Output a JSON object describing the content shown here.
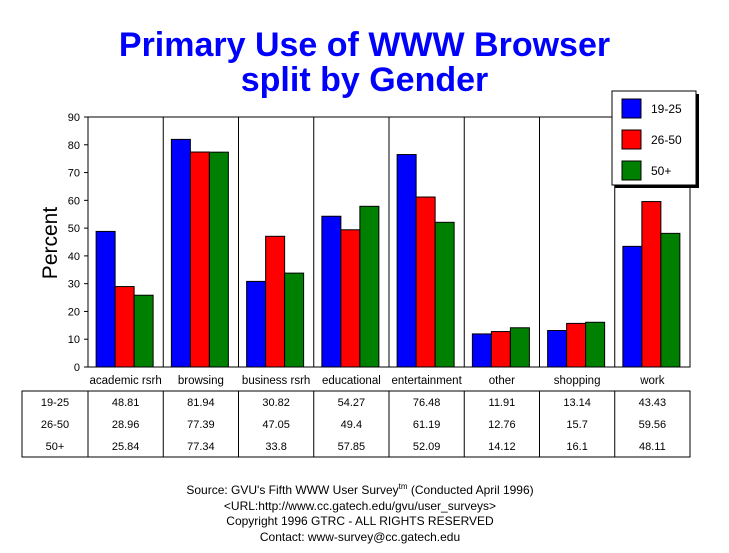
{
  "title": {
    "line1": "Primary Use of WWW Browser",
    "line2": "split by Gender"
  },
  "chart_data": {
    "type": "bar",
    "ylabel": "Percent",
    "xlabel": "",
    "ylim": [
      0,
      90
    ],
    "yticks": [
      "0",
      "10",
      "20",
      "30",
      "40",
      "50",
      "60",
      "70",
      "80",
      "90"
    ],
    "grid": "vertical separators between categories",
    "legend_position": "top-right",
    "categories": [
      "academic rsrh",
      "browsing",
      "business rsrh",
      "educational",
      "entertainment",
      "other",
      "shopping",
      "work"
    ],
    "series": [
      {
        "name": "19-25",
        "color": "#0000ff",
        "values": [
          48.81,
          81.94,
          30.82,
          54.27,
          76.48,
          11.91,
          13.14,
          43.43
        ],
        "labels": [
          "48.81",
          "81.94",
          "30.82",
          "54.27",
          "76.48",
          "11.91",
          "13.14",
          "43.43"
        ]
      },
      {
        "name": "26-50",
        "color": "#ff0000",
        "values": [
          28.96,
          77.39,
          47.05,
          49.4,
          61.19,
          12.76,
          15.7,
          59.56
        ],
        "labels": [
          "28.96",
          "77.39",
          "47.05",
          "49.4",
          "61.19",
          "12.76",
          "15.7",
          "59.56"
        ]
      },
      {
        "name": "50+",
        "color": "#008000",
        "values": [
          25.84,
          77.34,
          33.8,
          57.85,
          52.09,
          14.12,
          16.1,
          48.11
        ],
        "labels": [
          "25.84",
          "77.34",
          "33.8",
          "57.85",
          "52.09",
          "14.12",
          "16.1",
          "48.11"
        ]
      }
    ]
  },
  "footer": {
    "source_prefix": "Source: GVU's Fifth WWW User Survey",
    "source_sup": "tm",
    "source_suffix": "  (Conducted April 1996)",
    "url": "<URL:http://www.cc.gatech.edu/gvu/user_surveys>",
    "copyright": "Copyright 1996 GTRC -  ALL RIGHTS RESERVED",
    "contact": "Contact: www-survey@cc.gatech.edu"
  }
}
